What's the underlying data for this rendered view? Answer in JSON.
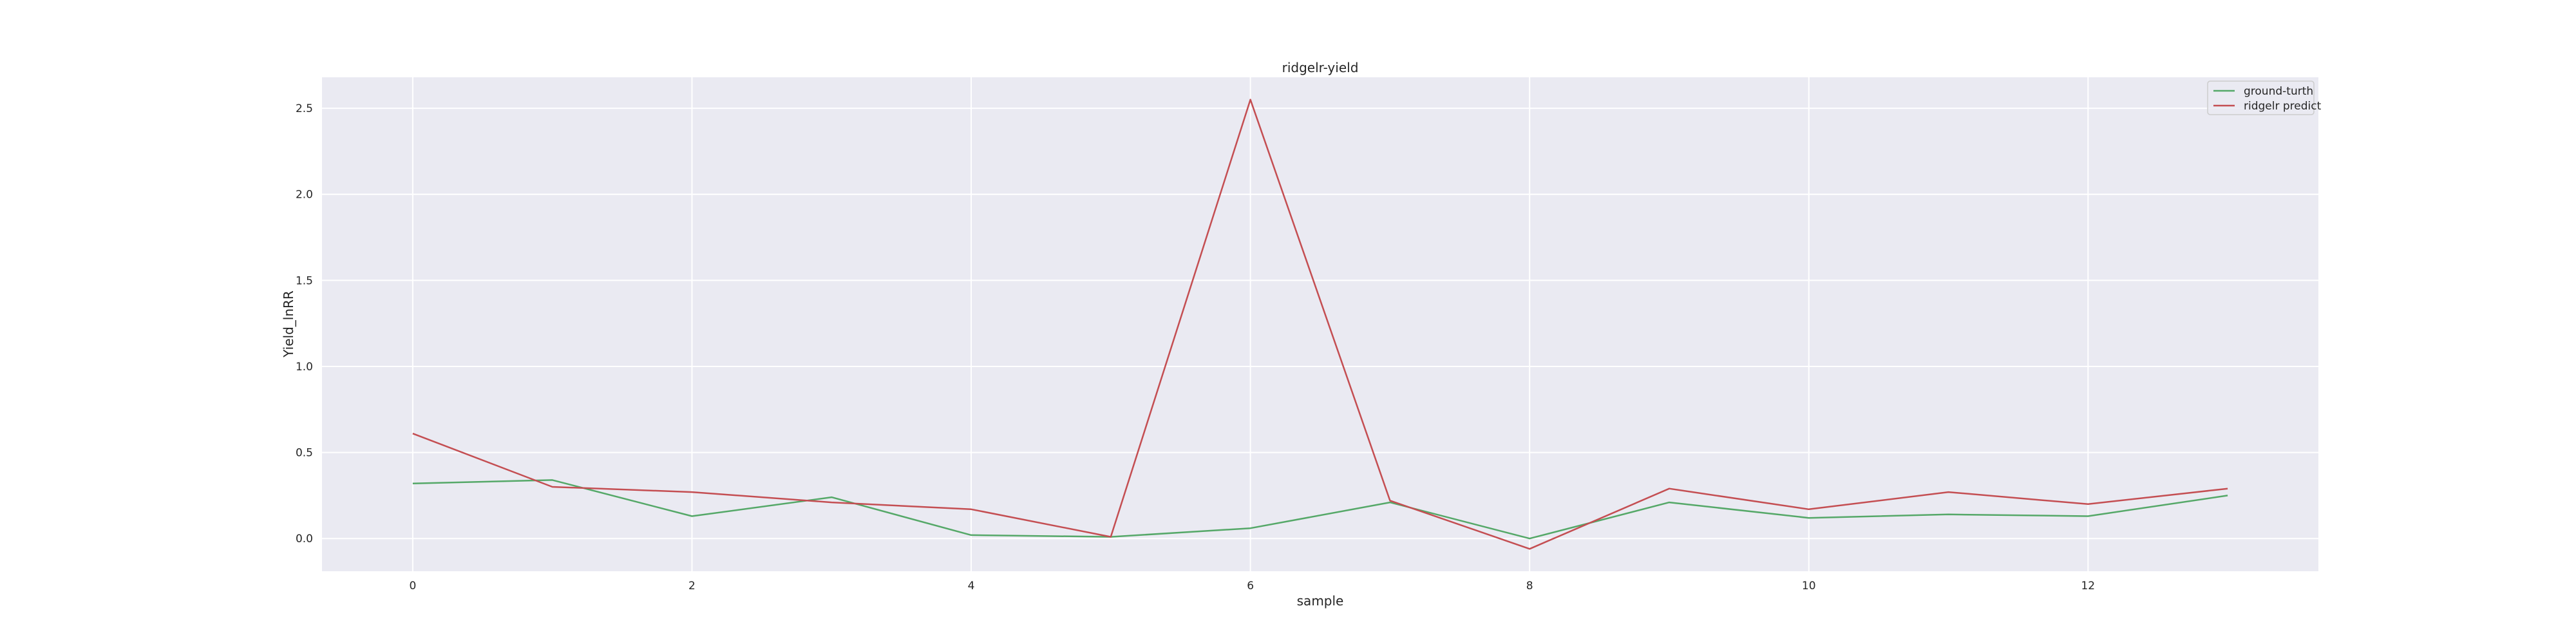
{
  "chart_data": {
    "type": "line",
    "title": "ridgelr-yield",
    "xlabel": "sample",
    "ylabel": "Yield_lnRR",
    "x": [
      0,
      1,
      2,
      3,
      4,
      5,
      6,
      7,
      8,
      9,
      10,
      11,
      12,
      13
    ],
    "xlim": [
      -0.65,
      13.65
    ],
    "ylim": [
      -0.19,
      2.68
    ],
    "xticks": [
      0,
      2,
      4,
      6,
      8,
      10,
      12
    ],
    "yticks": [
      0.0,
      0.5,
      1.0,
      1.5,
      2.0,
      2.5
    ],
    "grid": true,
    "legend_position": "top-right",
    "series": [
      {
        "name": "ground-turth",
        "color": "#55a868",
        "values": [
          0.32,
          0.34,
          0.13,
          0.24,
          0.02,
          0.01,
          0.06,
          0.21,
          0.0,
          0.21,
          0.12,
          0.14,
          0.13,
          0.25
        ]
      },
      {
        "name": "ridgelr predict",
        "color": "#c44e52",
        "values": [
          0.61,
          0.3,
          0.27,
          0.21,
          0.17,
          0.01,
          2.55,
          0.22,
          -0.06,
          0.29,
          0.17,
          0.27,
          0.2,
          0.29
        ]
      }
    ]
  }
}
